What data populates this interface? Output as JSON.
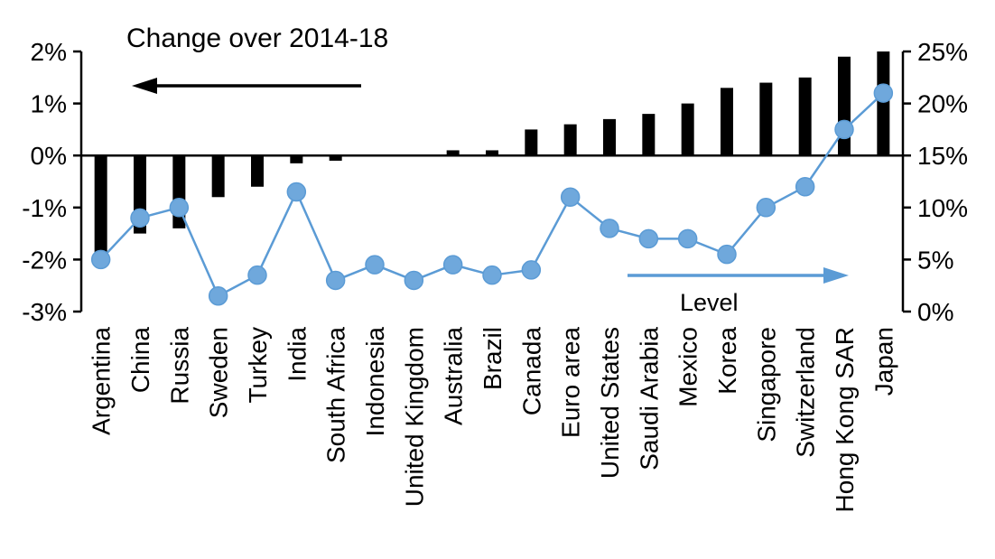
{
  "page": {
    "background": "#ffffff"
  },
  "chart_data": {
    "type": "combo-bar-line",
    "categories": [
      "Argentina",
      "China",
      "Russia",
      "Sweden",
      "Turkey",
      "India",
      "South Africa",
      "Indonesia",
      "United Kingdom",
      "Australia",
      "Brazil",
      "Canada",
      "Euro area",
      "United States",
      "Saudi Arabia",
      "Mexico",
      "Korea",
      "Singapore",
      "Switzerland",
      "Hong Kong SAR",
      "Japan"
    ],
    "series": [
      {
        "name": "Change over 2014-18",
        "type": "bar",
        "axis": "left",
        "color": "#000000",
        "values": [
          -2.0,
          -1.5,
          -1.4,
          -0.8,
          -0.6,
          -0.15,
          -0.1,
          0,
          0,
          0.1,
          0.1,
          0.5,
          0.6,
          0.7,
          0.8,
          1.0,
          1.3,
          1.4,
          1.5,
          1.9,
          2.0
        ]
      },
      {
        "name": "Level",
        "type": "line",
        "axis": "right",
        "color": "#5b9bd5",
        "marker_fill": "#6fa8dc",
        "values": [
          5,
          9,
          10,
          1.5,
          3.5,
          11.5,
          3,
          4.5,
          3,
          4.5,
          3.5,
          4,
          11,
          8,
          7,
          7,
          5.5,
          10,
          12,
          17.5,
          21
        ]
      }
    ],
    "left_axis": {
      "min": -3,
      "max": 2,
      "ticks": [
        2,
        1,
        0,
        -1,
        -2,
        -3
      ],
      "labels": [
        "2%",
        "1%",
        "0%",
        "-1%",
        "-2%",
        "-3%"
      ]
    },
    "right_axis": {
      "min": 0,
      "max": 25,
      "ticks": [
        25,
        20,
        15,
        10,
        5,
        0
      ],
      "labels": [
        "25%",
        "20%",
        "15%",
        "10%",
        "5%",
        "0%"
      ]
    },
    "annotations": {
      "bars_label": "Change over 2014-18",
      "line_label": "Level"
    },
    "legend_position": "none",
    "grid": false
  }
}
